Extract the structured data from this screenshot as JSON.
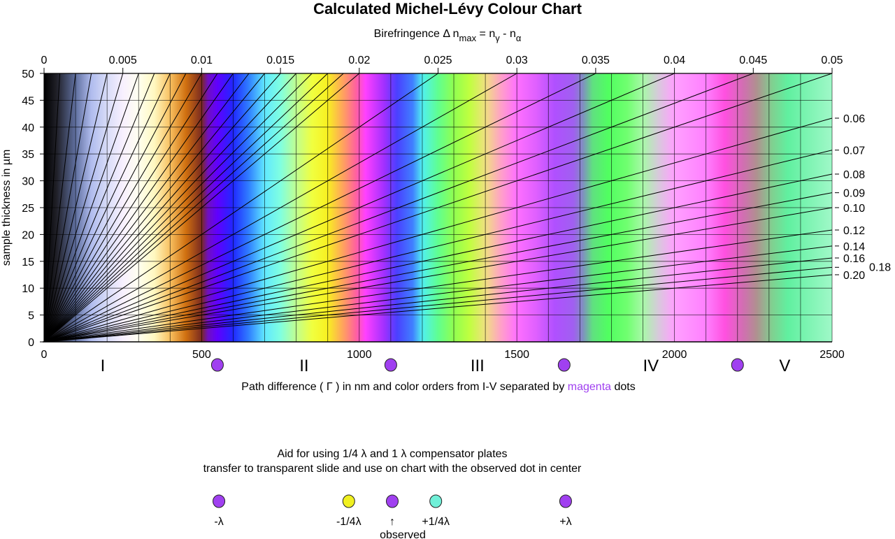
{
  "chart_data": {
    "type": "line",
    "title": "Calculated Michel-Lévy Colour Chart",
    "top_axis_label": {
      "base": "Birefringence Δ n",
      "sub1": "max",
      "mid": " = n",
      "sub2": "γ",
      "mid2": " - n",
      "sub3": "α"
    },
    "xlabel": {
      "before": "Path difference ( Γ ) in nm and color orders from I-V separated by ",
      "highlight": "magenta",
      "after": " dots"
    },
    "ylabel": "sample thickness in µm",
    "xlim": [
      0,
      2500
    ],
    "ylim": [
      0,
      50
    ],
    "x_ticks": [
      "0",
      "500",
      "1000",
      "1500",
      "2000",
      "2500"
    ],
    "y_ticks": [
      "0",
      "5",
      "10",
      "15",
      "20",
      "25",
      "30",
      "35",
      "40",
      "45",
      "50"
    ],
    "grid": true,
    "grid_x_step_nm": 100,
    "grid_y_step_um": 5,
    "top_ticks": [
      "0",
      "0.005",
      "0.01",
      "0.015",
      "0.02",
      "0.025",
      "0.03",
      "0.035",
      "0.04",
      "0.045",
      "0.05"
    ],
    "right_ticks": [
      "0.06",
      "0.07",
      "0.08",
      "0.09",
      "0.10",
      "0.12",
      "0.14",
      "0.16",
      "0.18",
      "0.20"
    ],
    "birefringence_lines": [
      0.001,
      0.002,
      0.003,
      0.004,
      0.005,
      0.006,
      0.007,
      0.008,
      0.009,
      0.01,
      0.011,
      0.012,
      0.013,
      0.014,
      0.015,
      0.016,
      0.017,
      0.018,
      0.019,
      0.02,
      0.025,
      0.03,
      0.035,
      0.04,
      0.045,
      0.05,
      0.06,
      0.07,
      0.08,
      0.09,
      0.1,
      0.12,
      0.14,
      0.16,
      0.18,
      0.2
    ],
    "color_orders": [
      "I",
      "II",
      "III",
      "IV",
      "V"
    ],
    "order_separators_nm": [
      550,
      1100,
      1650,
      2200
    ],
    "colors": {
      "magenta_dot": "#a040f0",
      "yellow_dot": "#f0f020",
      "cyan_dot": "#70f0d8",
      "highlight_text": "#a040f0"
    },
    "interference_colors": [
      [
        0,
        "#000000"
      ],
      [
        40,
        "#202028"
      ],
      [
        100,
        "#6070a0"
      ],
      [
        150,
        "#b0bcee"
      ],
      [
        200,
        "#d8dcf8"
      ],
      [
        250,
        "#f8f0ff"
      ],
      [
        300,
        "#fffff0"
      ],
      [
        350,
        "#fff8c0"
      ],
      [
        400,
        "#f8c060"
      ],
      [
        450,
        "#d07010"
      ],
      [
        500,
        "#7a2a20"
      ],
      [
        520,
        "#7010c0"
      ],
      [
        550,
        "#6000ff"
      ],
      [
        600,
        "#2028ff"
      ],
      [
        650,
        "#3080ff"
      ],
      [
        700,
        "#60e8ff"
      ],
      [
        750,
        "#80ffe0"
      ],
      [
        800,
        "#c0ff90"
      ],
      [
        850,
        "#f0ff40"
      ],
      [
        900,
        "#f8f020"
      ],
      [
        950,
        "#ffa060"
      ],
      [
        990,
        "#ff60a0"
      ],
      [
        1020,
        "#ff40ff"
      ],
      [
        1080,
        "#a030ff"
      ],
      [
        1120,
        "#4a40ff"
      ],
      [
        1170,
        "#4080ff"
      ],
      [
        1200,
        "#50f0f0"
      ],
      [
        1250,
        "#60ff90"
      ],
      [
        1300,
        "#90ff50"
      ],
      [
        1350,
        "#c0ff40"
      ],
      [
        1400,
        "#f0e080"
      ],
      [
        1450,
        "#ffa0c8"
      ],
      [
        1500,
        "#ff70ff"
      ],
      [
        1560,
        "#e060ff"
      ],
      [
        1620,
        "#b050ff"
      ],
      [
        1680,
        "#a060f0"
      ],
      [
        1710,
        "#8090c0"
      ],
      [
        1740,
        "#60e080"
      ],
      [
        1790,
        "#50ff60"
      ],
      [
        1850,
        "#70ff70"
      ],
      [
        1900,
        "#a8f8a8"
      ],
      [
        1950,
        "#d8c8dc"
      ],
      [
        2000,
        "#ffa0ff"
      ],
      [
        2100,
        "#ff80ff"
      ],
      [
        2160,
        "#ff50e0"
      ],
      [
        2220,
        "#d070b0"
      ],
      [
        2260,
        "#b09090"
      ],
      [
        2310,
        "#80d090"
      ],
      [
        2360,
        "#60f0a0"
      ],
      [
        2500,
        "#a0f8c8"
      ]
    ]
  },
  "compensator_aid": {
    "line1": "Aid for using 1/4 λ and 1 λ compensator plates",
    "line2": "transfer to transparent slide and use on chart with the observed dot in center",
    "dots": [
      {
        "label": "-λ",
        "offset_nm": -550,
        "color": "#a040f0"
      },
      {
        "label": "-1/4λ",
        "offset_nm": -138,
        "color": "#f0f020"
      },
      {
        "label": "↑",
        "offset_nm": 0,
        "color": "#a040f0"
      },
      {
        "label": "+1/4λ",
        "offset_nm": 138,
        "color": "#70f0d8"
      },
      {
        "label": "+λ",
        "offset_nm": 550,
        "color": "#a040f0"
      }
    ],
    "observed_label": "observed"
  }
}
